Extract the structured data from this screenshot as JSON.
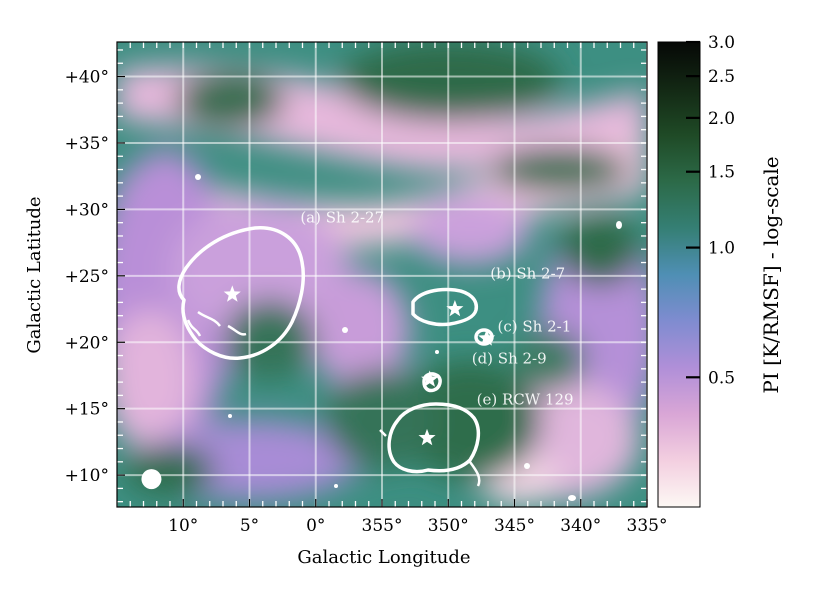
{
  "chart_data": {
    "type": "heatmap",
    "title": "",
    "xlabel": "Galactic Longitude",
    "ylabel": "Galactic Latitude",
    "x_unit": "deg",
    "y_unit": "deg",
    "xlim": [
      15,
      -25
    ],
    "ylim": [
      7.6,
      42.6
    ],
    "x_ticks": [
      {
        "value": 10,
        "label": "10°"
      },
      {
        "value": 5,
        "label": "5°"
      },
      {
        "value": 0,
        "label": "0°"
      },
      {
        "value": -5,
        "label": "355°"
      },
      {
        "value": -10,
        "label": "350°"
      },
      {
        "value": -15,
        "label": "345°"
      },
      {
        "value": -20,
        "label": "340°"
      },
      {
        "value": -25,
        "label": "335°"
      }
    ],
    "y_ticks": [
      {
        "value": 10,
        "label": "+10°"
      },
      {
        "value": 15,
        "label": "+15°"
      },
      {
        "value": 20,
        "label": "+20°"
      },
      {
        "value": 25,
        "label": "+25°"
      },
      {
        "value": 30,
        "label": "+30°"
      },
      {
        "value": 35,
        "label": "+35°"
      },
      {
        "value": 40,
        "label": "+40°"
      }
    ],
    "grid": true,
    "colorbar": {
      "label": "PI [K/RMSF] - log-scale",
      "scale": "log",
      "vmin": 0.25,
      "vmax": 3.0,
      "ticks": [
        {
          "value": 0.5,
          "label": "0.5"
        },
        {
          "value": 1.0,
          "label": "1.0"
        },
        {
          "value": 1.5,
          "label": "1.5"
        },
        {
          "value": 2.0,
          "label": "2.0"
        },
        {
          "value": 2.5,
          "label": "2.5"
        },
        {
          "value": 3.0,
          "label": "3.0"
        }
      ],
      "colors": [
        "#fdf8f4",
        "#f3cfe0",
        "#d9a6d6",
        "#b08fd8",
        "#7f8cd0",
        "#4f8fb4",
        "#357f74",
        "#2c6a48",
        "#1f4a26",
        "#132814",
        "#060806"
      ]
    },
    "regions": [
      {
        "label": "(a) Sh 2-27",
        "star": [
          6.3,
          23.6
        ],
        "label_pos": [
          -2,
          29
        ]
      },
      {
        "label": "(b) Sh 2-7",
        "star": [
          -10.5,
          22.5
        ],
        "label_pos": [
          -16,
          24.8
        ]
      },
      {
        "label": "(c) Sh 2-1",
        "star": [
          -12.9,
          20.3
        ],
        "label_pos": [
          -16.5,
          20.8
        ]
      },
      {
        "label": "(d) Sh 2-9",
        "star": [
          -8.6,
          17.2
        ],
        "label_pos": [
          -14.6,
          18.4
        ]
      },
      {
        "label": "(e) RCW 129",
        "star": [
          -8.4,
          12.8
        ],
        "label_pos": [
          -15.8,
          15.3
        ]
      }
    ],
    "beam_marker": [
      12.4,
      9.7
    ],
    "colors": {
      "contour": "#ffffff",
      "grid": "#ffffff",
      "text": "#ffffff"
    }
  }
}
